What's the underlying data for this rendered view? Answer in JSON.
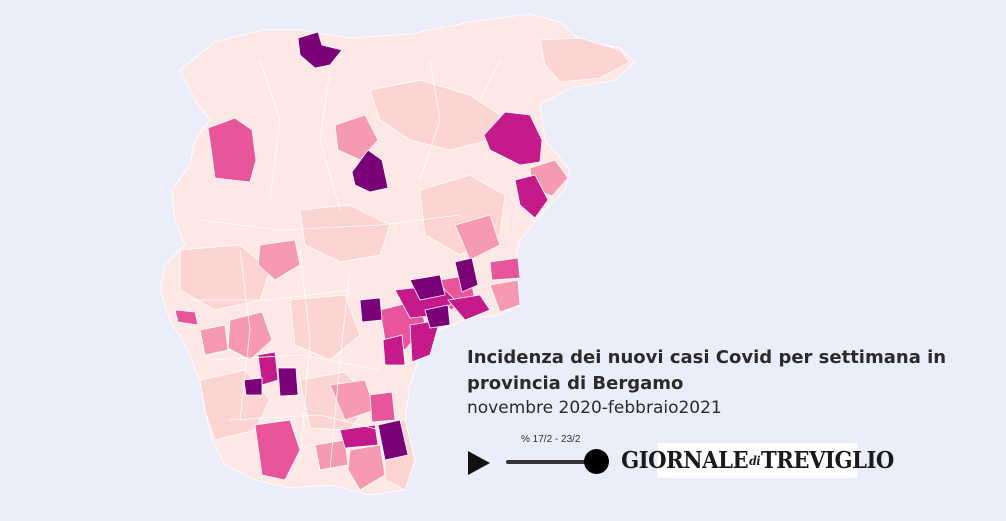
{
  "map": {
    "colors": {
      "pale": "#fde8e6",
      "light": "#fcd4d1",
      "mid": "#f59ab0",
      "pink": "#e8559b",
      "magenta": "#c51b8a",
      "purple": "#7a0177"
    }
  },
  "info": {
    "title": "Incidenza dei nuovi casi Covid per settimana in provincia di Bergamo",
    "subtitle": "novembre 2020-febbraio2021"
  },
  "player": {
    "slider_label": "% 17/2 - 23/2",
    "progress": 1.0
  },
  "logo": {
    "part1": "GIORNALE",
    "part2": "di",
    "part3": "TREVIGLIO"
  }
}
